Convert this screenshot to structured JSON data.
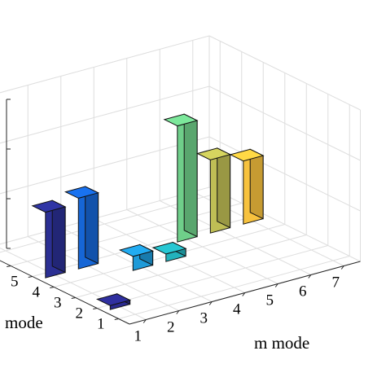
{
  "chart_data": {
    "type": "bar3d",
    "title": "",
    "xlabel": "m mode",
    "ylabel": "mode",
    "zlabel": "",
    "x_ticks": [
      "1",
      "2",
      "3",
      "4",
      "5",
      "6",
      "7"
    ],
    "y_ticks_visible": [
      "1",
      "2",
      "3",
      "4",
      "5"
    ],
    "grid": true,
    "bars": [
      {
        "m": 1,
        "n": 2,
        "value": 0.08,
        "color": "#2a2a8f"
      },
      {
        "m": 1,
        "n": 5,
        "value": 1.3,
        "color": "#2b2f93"
      },
      {
        "m": 2,
        "n": 5,
        "value": 1.4,
        "color": "#1666d6"
      },
      {
        "m": 3,
        "n": 4,
        "value": 0.28,
        "color": "#1e9ad8"
      },
      {
        "m": 4,
        "n": 4,
        "value": 0.15,
        "color": "#23b2bc"
      },
      {
        "m": 5,
        "n": 5,
        "value": 2.3,
        "color": "#6fcf8a"
      },
      {
        "m": 6,
        "n": 5,
        "value": 1.45,
        "color": "#bfbe55"
      },
      {
        "m": 7,
        "n": 5,
        "value": 1.25,
        "color": "#f7c23e"
      }
    ]
  }
}
